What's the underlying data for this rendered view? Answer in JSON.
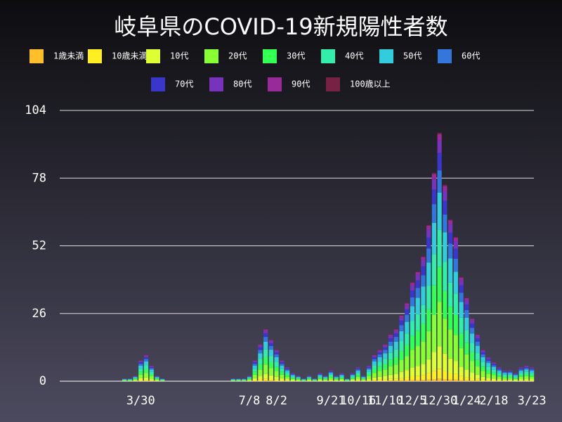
{
  "chart_data": {
    "type": "bar",
    "stacked": true,
    "title": "岐阜県のCOVID-19新規陽性者数",
    "categories": [
      null,
      null,
      null,
      null,
      null,
      null,
      "3/30",
      null,
      null,
      null,
      null,
      null,
      null,
      null,
      null,
      null,
      null,
      null,
      null,
      null,
      null,
      null,
      null,
      null,
      null,
      null,
      "7/8",
      null,
      null,
      null,
      null,
      "8/2",
      null,
      null,
      null,
      null,
      null,
      null,
      null,
      null,
      null,
      "9/21",
      null,
      null,
      null,
      null,
      "10/16",
      null,
      null,
      null,
      null,
      "11/10",
      null,
      null,
      null,
      null,
      "12/5",
      null,
      null,
      null,
      null,
      "12/30",
      null,
      null,
      null,
      null,
      "1/24",
      null,
      null,
      null,
      null,
      "2/18",
      null,
      null,
      null,
      null,
      null,
      null,
      "3/23"
    ],
    "ylim": [
      0,
      104
    ],
    "yticks": [
      0,
      26,
      52,
      78,
      104
    ],
    "grid": true,
    "series": [
      {
        "name": "1歳未満",
        "color": "#ffbf2a",
        "values": [
          0,
          0,
          0,
          0,
          0,
          0,
          0.1,
          0.1,
          0.1,
          0,
          0,
          0,
          0,
          0,
          0,
          0,
          0,
          0,
          0,
          0,
          0,
          0,
          0,
          0,
          0,
          0,
          0,
          0.1,
          0.1,
          0.2,
          0.2,
          0.1,
          0.1,
          0.1,
          0,
          0,
          0,
          0,
          0,
          0,
          0,
          0,
          0,
          0,
          0,
          0,
          0.1,
          0,
          0.1,
          0.1,
          0.1,
          0.1,
          0.2,
          0.2,
          0.3,
          0.3,
          0.4,
          0.4,
          0.5,
          0.6,
          0.8,
          1,
          0.8,
          0.6,
          0.6,
          0.4,
          0.3,
          0.2,
          0.2,
          0.1,
          0.1,
          0.1,
          0.1,
          0,
          0,
          0,
          0.1,
          0.1,
          0.1
        ]
      },
      {
        "name": "10歳未満",
        "color": "#ffee22",
        "values": [
          0,
          0,
          0,
          0,
          0,
          0.1,
          0.3,
          0.4,
          0.2,
          0.1,
          0,
          0,
          0,
          0,
          0,
          0,
          0,
          0,
          0,
          0,
          0,
          0,
          0,
          0,
          0,
          0,
          0.1,
          0.3,
          0.6,
          0.8,
          0.6,
          0.5,
          0.3,
          0.2,
          0.1,
          0.1,
          0,
          0.1,
          0,
          0.1,
          0.1,
          0.2,
          0.1,
          0.1,
          0,
          0.1,
          0.2,
          0.1,
          0.2,
          0.4,
          0.5,
          0.6,
          0.7,
          0.8,
          1,
          1.2,
          1.5,
          1.7,
          1.9,
          2.4,
          3.2,
          3.8,
          3,
          2.5,
          2.2,
          1.6,
          1.3,
          1,
          0.7,
          0.5,
          0.4,
          0.3,
          0.2,
          0.2,
          0.2,
          0.1,
          0.2,
          0.2,
          0.2
        ]
      },
      {
        "name": "10代",
        "color": "#ddff33",
        "values": [
          0,
          0,
          0,
          0.1,
          0.1,
          0.2,
          0.7,
          0.9,
          0.5,
          0.2,
          0.1,
          0,
          0,
          0,
          0,
          0,
          0,
          0,
          0,
          0,
          0,
          0,
          0,
          0.1,
          0.1,
          0.1,
          0.2,
          0.7,
          1.3,
          1.8,
          1.4,
          1.1,
          0.7,
          0.5,
          0.3,
          0.2,
          0.1,
          0.2,
          0.1,
          0.3,
          0.2,
          0.4,
          0.2,
          0.3,
          0.1,
          0.3,
          0.5,
          0.2,
          0.5,
          0.9,
          1.1,
          1.3,
          1.6,
          1.8,
          2.3,
          2.7,
          3.4,
          3.8,
          4.3,
          5.4,
          7.2,
          8.6,
          6.8,
          5.6,
          5,
          3.6,
          2.9,
          2.2,
          1.6,
          1.1,
          0.8,
          0.6,
          0.5,
          0.4,
          0.4,
          0.3,
          0.5,
          0.5,
          0.5
        ]
      },
      {
        "name": "20代",
        "color": "#88ff33",
        "values": [
          0,
          0,
          0,
          0.2,
          0.2,
          0.4,
          1.4,
          1.8,
          1.1,
          0.4,
          0.2,
          0,
          0,
          0,
          0,
          0,
          0,
          0,
          0,
          0,
          0,
          0,
          0,
          0.2,
          0.2,
          0.2,
          0.4,
          1.4,
          2.5,
          3.6,
          2.9,
          2.2,
          1.4,
          0.9,
          0.5,
          0.4,
          0.2,
          0.4,
          0.2,
          0.5,
          0.4,
          0.7,
          0.4,
          0.5,
          0.2,
          0.5,
          0.9,
          0.4,
          1.1,
          1.8,
          2.2,
          2.5,
          3.2,
          3.6,
          4.5,
          5.4,
          6.8,
          7.6,
          8.6,
          10.8,
          14.4,
          17.1,
          13.5,
          11.2,
          9.9,
          7.2,
          5.8,
          4.3,
          3.2,
          2.2,
          1.6,
          1.3,
          0.9,
          0.7,
          0.7,
          0.5,
          0.9,
          1.1,
          0.9
        ]
      },
      {
        "name": "30代",
        "color": "#33ff55",
        "values": [
          0,
          0,
          0,
          0.1,
          0.1,
          0.3,
          1.1,
          1.4,
          0.8,
          0.3,
          0.1,
          0,
          0,
          0,
          0,
          0,
          0,
          0,
          0,
          0,
          0,
          0,
          0,
          0.1,
          0.1,
          0.1,
          0.3,
          1.1,
          2,
          2.8,
          2.2,
          1.7,
          1.1,
          0.7,
          0.4,
          0.3,
          0.1,
          0.3,
          0.1,
          0.4,
          0.3,
          0.6,
          0.3,
          0.4,
          0.1,
          0.4,
          0.7,
          0.3,
          0.8,
          1.4,
          1.7,
          2,
          2.5,
          2.8,
          3.5,
          4.2,
          5.3,
          5.9,
          6.7,
          8.4,
          11.2,
          13.3,
          10.5,
          8.7,
          7.7,
          5.6,
          4.5,
          3.4,
          2.5,
          1.7,
          1.3,
          1,
          0.7,
          0.6,
          0.6,
          0.4,
          0.7,
          0.8,
          0.7
        ]
      },
      {
        "name": "40代",
        "color": "#33eeaa",
        "values": [
          0,
          0,
          0,
          0.2,
          0.2,
          0.3,
          1.2,
          1.5,
          0.9,
          0.3,
          0.2,
          0,
          0,
          0,
          0,
          0,
          0,
          0,
          0,
          0,
          0,
          0,
          0,
          0.2,
          0.2,
          0.2,
          0.3,
          1.2,
          2.1,
          3,
          2.4,
          1.8,
          1.2,
          0.8,
          0.5,
          0.3,
          0.2,
          0.3,
          0.2,
          0.5,
          0.3,
          0.6,
          0.3,
          0.5,
          0.2,
          0.5,
          0.8,
          0.3,
          0.9,
          1.5,
          1.8,
          2.1,
          2.7,
          3,
          3.8,
          4.5,
          5.7,
          6.3,
          7.2,
          9,
          12,
          14.3,
          11.3,
          9.3,
          8.3,
          6,
          4.8,
          3.6,
          2.7,
          1.8,
          1.4,
          1.1,
          0.8,
          0.6,
          0.6,
          0.5,
          0.8,
          0.9,
          0.8
        ]
      },
      {
        "name": "50代",
        "color": "#33ccdd",
        "values": [
          0,
          0,
          0,
          0.2,
          0.2,
          0.3,
          1.2,
          1.5,
          0.9,
          0.3,
          0.2,
          0,
          0,
          0,
          0,
          0,
          0,
          0,
          0,
          0,
          0,
          0,
          0,
          0.2,
          0.2,
          0.2,
          0.3,
          1.2,
          2.1,
          3,
          2.4,
          1.8,
          1.2,
          0.8,
          0.5,
          0.3,
          0.2,
          0.3,
          0.2,
          0.5,
          0.3,
          0.6,
          0.3,
          0.5,
          0.2,
          0.5,
          0.8,
          0.3,
          0.9,
          1.5,
          1.8,
          2.1,
          2.7,
          3,
          3.8,
          4.5,
          5.7,
          6.3,
          7.2,
          9,
          12,
          14.3,
          11.3,
          9.3,
          8.3,
          6,
          4.8,
          3.6,
          2.7,
          1.8,
          1.4,
          1.1,
          0.8,
          0.6,
          0.6,
          0.5,
          0.8,
          0.9,
          0.8
        ]
      },
      {
        "name": "60代",
        "color": "#3377dd",
        "values": [
          0,
          0,
          0,
          0.1,
          0.1,
          0.2,
          0.7,
          0.9,
          0.5,
          0.2,
          0.1,
          0,
          0,
          0,
          0,
          0,
          0,
          0,
          0,
          0,
          0,
          0,
          0,
          0.1,
          0.1,
          0.1,
          0.2,
          0.7,
          1.3,
          1.8,
          1.4,
          1.1,
          0.7,
          0.5,
          0.3,
          0.2,
          0.1,
          0.2,
          0.1,
          0.3,
          0.2,
          0.4,
          0.2,
          0.3,
          0.1,
          0.3,
          0.5,
          0.2,
          0.5,
          0.9,
          1.1,
          1.3,
          1.6,
          1.8,
          2.3,
          2.7,
          3.4,
          3.8,
          4.3,
          5.4,
          7.2,
          8.6,
          6.8,
          5.6,
          5,
          3.6,
          2.9,
          2.2,
          1.6,
          1.1,
          0.8,
          0.6,
          0.5,
          0.4,
          0.4,
          0.3,
          0.5,
          0.5,
          0.5
        ]
      },
      {
        "name": "70代",
        "color": "#3a36cc",
        "values": [
          0,
          0,
          0,
          0.1,
          0.1,
          0.1,
          0.6,
          0.7,
          0.4,
          0.1,
          0.1,
          0,
          0,
          0,
          0,
          0,
          0,
          0,
          0,
          0,
          0,
          0,
          0,
          0.1,
          0.1,
          0.1,
          0.1,
          0.6,
          1,
          1.4,
          1.1,
          0.8,
          0.6,
          0.4,
          0.2,
          0.1,
          0.1,
          0.1,
          0.1,
          0.2,
          0.1,
          0.3,
          0.1,
          0.2,
          0.1,
          0.2,
          0.4,
          0.1,
          0.4,
          0.7,
          0.8,
          1,
          1.3,
          1.4,
          1.8,
          2.1,
          2.7,
          2.9,
          3.4,
          4.2,
          5.6,
          6.7,
          5.3,
          4.3,
          3.9,
          2.8,
          2.2,
          1.7,
          1.3,
          0.8,
          0.6,
          0.5,
          0.4,
          0.3,
          0.3,
          0.2,
          0.4,
          0.4,
          0.4
        ]
      },
      {
        "name": "80代",
        "color": "#7733bb",
        "values": [
          0,
          0,
          0,
          0.1,
          0.1,
          0.1,
          0.4,
          0.5,
          0.3,
          0.1,
          0.1,
          0,
          0,
          0,
          0,
          0,
          0,
          0,
          0,
          0,
          0,
          0,
          0,
          0.1,
          0.1,
          0.1,
          0.1,
          0.4,
          0.7,
          1,
          0.8,
          0.6,
          0.4,
          0.3,
          0.2,
          0.1,
          0.1,
          0.1,
          0.1,
          0.2,
          0.1,
          0.2,
          0.1,
          0.2,
          0.1,
          0.2,
          0.3,
          0.1,
          0.3,
          0.5,
          0.6,
          0.7,
          0.9,
          1,
          1.3,
          1.5,
          1.9,
          2.1,
          2.4,
          3,
          4,
          4.8,
          3.8,
          3.1,
          2.8,
          2,
          1.6,
          1.2,
          0.9,
          0.6,
          0.5,
          0.4,
          0.3,
          0.2,
          0.2,
          0.2,
          0.3,
          0.3,
          0.3
        ]
      },
      {
        "name": "90代",
        "color": "#992a9a",
        "values": [
          0,
          0,
          0,
          0,
          0,
          0.1,
          0.2,
          0.3,
          0.2,
          0.1,
          0,
          0,
          0,
          0,
          0,
          0,
          0,
          0,
          0,
          0,
          0,
          0,
          0,
          0,
          0,
          0,
          0.1,
          0.2,
          0.4,
          0.5,
          0.4,
          0.3,
          0.2,
          0.1,
          0.1,
          0.1,
          0,
          0.1,
          0,
          0.1,
          0.1,
          0.1,
          0.1,
          0.1,
          0,
          0.1,
          0.1,
          0.1,
          0.2,
          0.3,
          0.3,
          0.4,
          0.5,
          0.5,
          0.6,
          0.8,
          1,
          1.1,
          1.2,
          1.5,
          2,
          2.4,
          1.9,
          1.6,
          1.4,
          1,
          0.8,
          0.6,
          0.5,
          0.3,
          0.2,
          0.2,
          0.1,
          0.1,
          0.1,
          0.1,
          0.1,
          0.2,
          0.1
        ]
      },
      {
        "name": "100歳以上",
        "color": "#772244",
        "values": [
          0,
          0,
          0,
          0,
          0,
          0,
          0,
          0.1,
          0,
          0,
          0,
          0,
          0,
          0,
          0,
          0,
          0,
          0,
          0,
          0,
          0,
          0,
          0,
          0,
          0,
          0,
          0,
          0,
          0.1,
          0.1,
          0.1,
          0.1,
          0,
          0,
          0,
          0,
          0,
          0,
          0,
          0,
          0,
          0,
          0,
          0,
          0,
          0,
          0,
          0,
          0,
          0.1,
          0.1,
          0.1,
          0.1,
          0.1,
          0.1,
          0.2,
          0.2,
          0.2,
          0.2,
          0.3,
          0.4,
          0.5,
          0.4,
          0.3,
          0.3,
          0.2,
          0.2,
          0.1,
          0.1,
          0.1,
          0,
          0,
          0,
          0,
          0,
          0,
          0,
          0,
          0
        ]
      }
    ]
  }
}
